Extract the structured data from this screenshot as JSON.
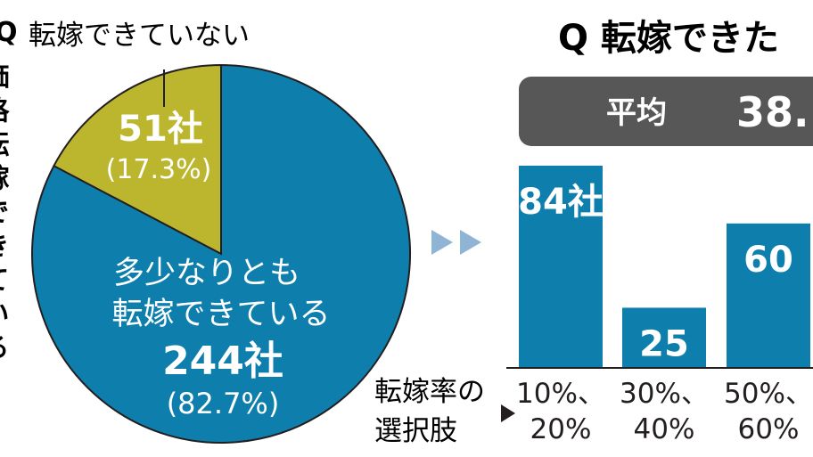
{
  "left_question": {
    "prefix": "Q",
    "vertical_text": "価格転嫁できている"
  },
  "right_title": "Q 転嫁できた",
  "average": {
    "label": "平均",
    "value": "38."
  },
  "bar_axis_label": [
    "転嫁率の",
    "選択肢"
  ],
  "colors": {
    "blue": "#0e7fad",
    "olive": "#bcb52e",
    "dark_band": "#575757",
    "text": "#231f20",
    "arrow": "#8fb4d4"
  },
  "chart_data": [
    {
      "type": "pie",
      "slices": [
        {
          "lines": [
            "多少なりとも",
            "転嫁できている"
          ],
          "value": 244,
          "value_label": "244社",
          "percent": 82.7,
          "percent_label": "(82.7%)",
          "color": "#0e7fad"
        },
        {
          "lines": [
            "転嫁できていない"
          ],
          "value": 51,
          "value_label": "51社",
          "percent": 17.3,
          "percent_label": "(17.3%)",
          "color": "#bcb52e"
        }
      ]
    },
    {
      "type": "bar",
      "categories": [
        [
          "10%、",
          "20%"
        ],
        [
          "30%、",
          "40%"
        ],
        [
          "50%、",
          "60%"
        ]
      ],
      "values": [
        84,
        25,
        60
      ],
      "value_labels": [
        "84社",
        "25",
        "60"
      ],
      "ylim": [
        0,
        90
      ],
      "color": "#0e7fad"
    }
  ]
}
